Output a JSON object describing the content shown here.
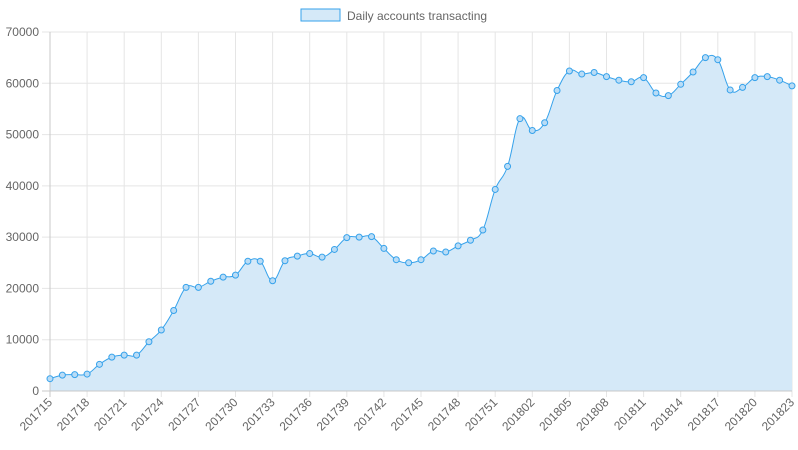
{
  "chart_data": {
    "type": "area",
    "legend": {
      "position": "top-center",
      "label": "Daily accounts transacting"
    },
    "colors": {
      "line": "#36A2EB",
      "fill": "#d5e9f8",
      "point_fill": "#b9dcf6",
      "grid": "#e5e5e5",
      "axis": "#c8c8c8"
    },
    "grid": true,
    "ylim": [
      0,
      70000
    ],
    "y_ticks": [
      0,
      10000,
      20000,
      30000,
      40000,
      50000,
      60000,
      70000
    ],
    "x_tick_labels": [
      "201715",
      "201718",
      "201721",
      "201724",
      "201727",
      "201730",
      "201733",
      "201736",
      "201739",
      "201742",
      "201745",
      "201748",
      "201751",
      "201802",
      "201805",
      "201808",
      "201811",
      "201814",
      "201817",
      "201820",
      "201823"
    ],
    "x": [
      "201715",
      "201716",
      "201717",
      "201718",
      "201719",
      "201720",
      "201721",
      "201722",
      "201723",
      "201724",
      "201725",
      "201726",
      "201727",
      "201728",
      "201729",
      "201730",
      "201731",
      "201732",
      "201733",
      "201734",
      "201735",
      "201736",
      "201737",
      "201738",
      "201739",
      "201740",
      "201741",
      "201742",
      "201743",
      "201744",
      "201745",
      "201746",
      "201747",
      "201748",
      "201749",
      "201750",
      "201751",
      "201752",
      "201801",
      "201802",
      "201803",
      "201804",
      "201805",
      "201806",
      "201807",
      "201808",
      "201809",
      "201810",
      "201811",
      "201812",
      "201813",
      "201814",
      "201815",
      "201816",
      "201817",
      "201818",
      "201819",
      "201820",
      "201821",
      "201822",
      "201823"
    ],
    "series": [
      {
        "name": "Daily accounts transacting",
        "values": [
          2400,
          3100,
          3200,
          3300,
          5200,
          6600,
          7000,
          7000,
          9600,
          11900,
          15700,
          20200,
          20200,
          21400,
          22200,
          22600,
          25300,
          25300,
          21500,
          25400,
          26300,
          26800,
          26100,
          27600,
          29900,
          30000,
          30100,
          27800,
          25600,
          25000,
          25600,
          27300,
          27100,
          28300,
          29400,
          31400,
          39300,
          43800,
          53100,
          50800,
          52300,
          58600,
          62400,
          61800,
          62100,
          61300,
          60600,
          60300,
          61100,
          58100,
          57600,
          59800,
          62200,
          65000,
          64600,
          58700,
          59200,
          61100,
          61300,
          60600,
          59500
        ]
      }
    ]
  }
}
